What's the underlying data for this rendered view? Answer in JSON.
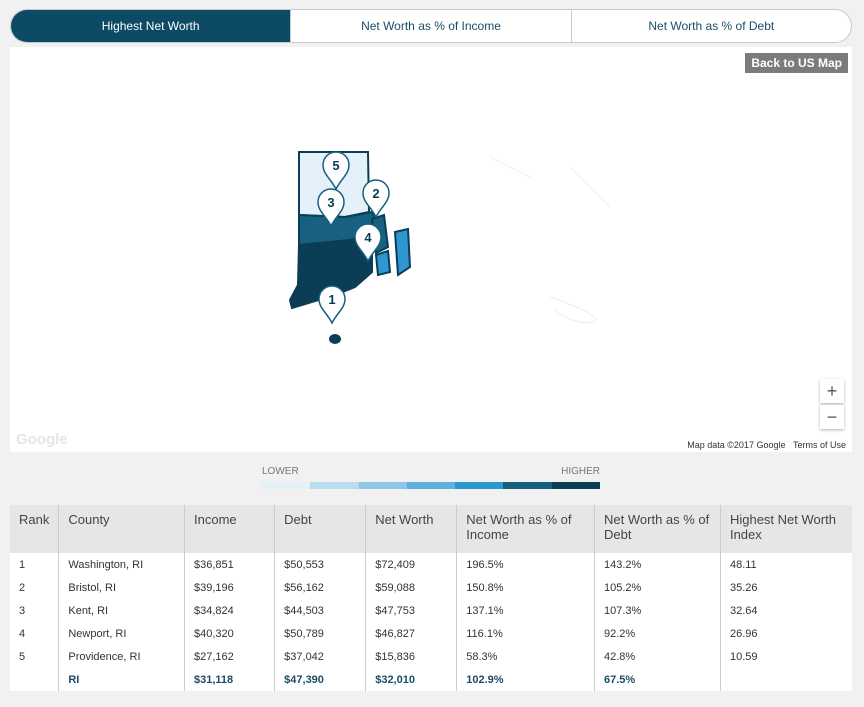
{
  "tabs": [
    "Highest Net Worth",
    "Net Worth as % of Income",
    "Net Worth as % of Debt"
  ],
  "active_tab": 0,
  "map": {
    "back_button": "Back to US Map",
    "zoom_in": "+",
    "zoom_out": "−",
    "logo": "Google",
    "attribution": "Map data ©2017 Google",
    "terms": "Terms of Use",
    "markers": [
      "5",
      "2",
      "3",
      "4",
      "1"
    ]
  },
  "legend": {
    "low": "LOWER",
    "high": "HIGHER",
    "colors": [
      "#e4f1f9",
      "#b9dcef",
      "#8dc6e6",
      "#5fb0dc",
      "#2e97d0",
      "#17607f",
      "#0b3d56"
    ]
  },
  "table": {
    "header": [
      "Rank",
      "County",
      "Income",
      "Debt",
      "Net Worth",
      "Net Worth as % of Income",
      "Net Worth as % of Debt",
      "Highest Net Worth Index"
    ],
    "rows": [
      [
        "1",
        "Washington, RI",
        "$36,851",
        "$50,553",
        "$72,409",
        "196.5%",
        "143.2%",
        "48.11"
      ],
      [
        "2",
        "Bristol, RI",
        "$39,196",
        "$56,162",
        "$59,088",
        "150.8%",
        "105.2%",
        "35.26"
      ],
      [
        "3",
        "Kent, RI",
        "$34,824",
        "$44,503",
        "$47,753",
        "137.1%",
        "107.3%",
        "32.64"
      ],
      [
        "4",
        "Newport, RI",
        "$40,320",
        "$50,789",
        "$46,827",
        "116.1%",
        "92.2%",
        "26.96"
      ],
      [
        "5",
        "Providence, RI",
        "$27,162",
        "$37,042",
        "$15,836",
        "58.3%",
        "42.8%",
        "10.59"
      ]
    ],
    "total": [
      "RI",
      "$31,118",
      "$47,390",
      "$32,010",
      "102.9%",
      "67.5%"
    ]
  }
}
